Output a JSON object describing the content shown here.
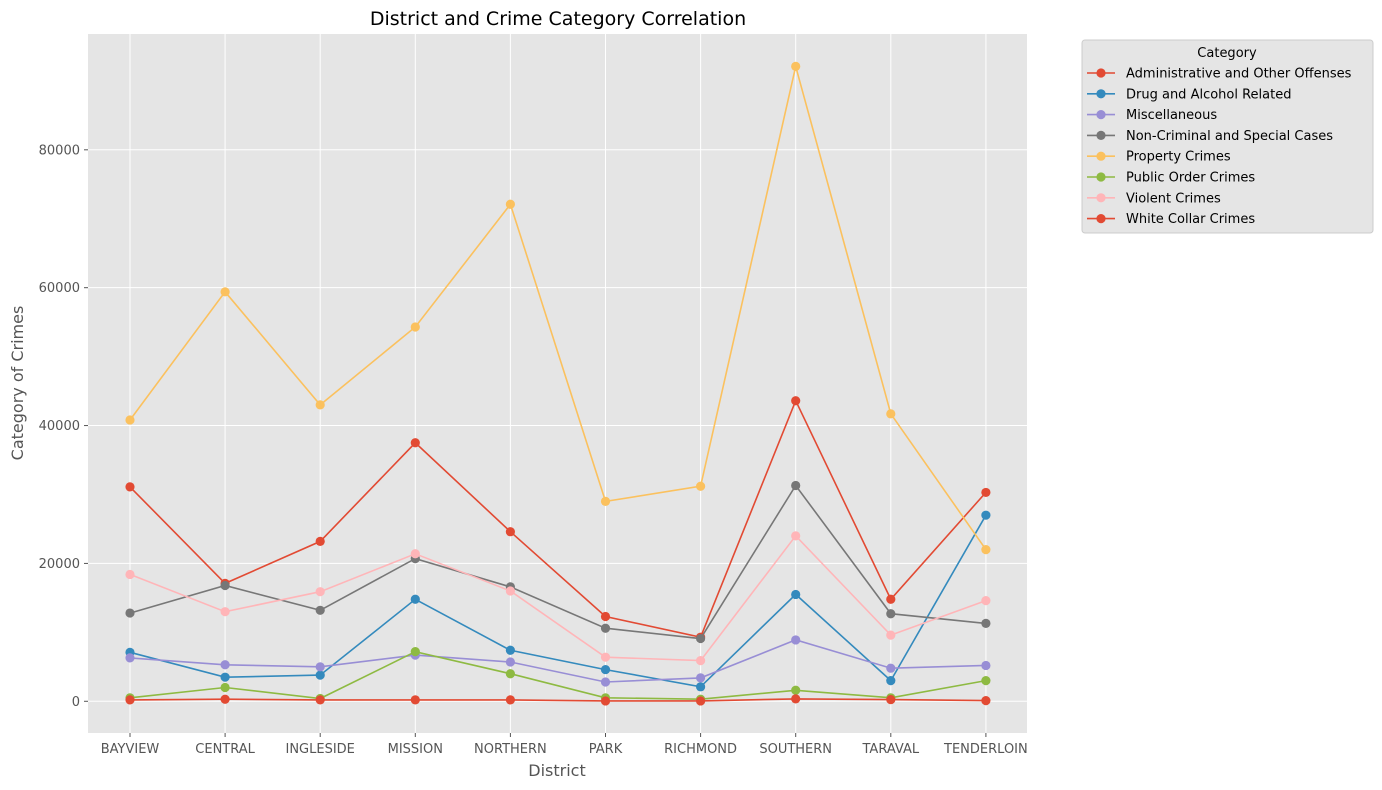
{
  "chart_data": {
    "type": "line",
    "title": "District and Crime Category Correlation",
    "xlabel": "District",
    "ylabel": "Category of Crimes",
    "categories": [
      "BAYVIEW",
      "CENTRAL",
      "INGLESIDE",
      "MISSION",
      "NORTHERN",
      "PARK",
      "RICHMOND",
      "SOUTHERN",
      "TARAVAL",
      "TENDERLOIN"
    ],
    "ylim": [
      -4600,
      96800
    ],
    "yticks": [
      0,
      20000,
      40000,
      60000,
      80000
    ],
    "grid": true,
    "legend": {
      "title": "Category",
      "placement": "outside-top-right"
    },
    "series": [
      {
        "name": "Administrative and Other Offenses",
        "color": "#E24A33",
        "values": [
          31100,
          17100,
          23200,
          37500,
          24600,
          12300,
          9300,
          43600,
          14800,
          30300
        ]
      },
      {
        "name": "Drug and Alcohol Related",
        "color": "#348ABD",
        "values": [
          7100,
          3500,
          3800,
          14800,
          7400,
          4600,
          2100,
          15500,
          3000,
          27000
        ]
      },
      {
        "name": "Miscellaneous",
        "color": "#988ED5",
        "values": [
          6300,
          5300,
          5000,
          6700,
          5700,
          2800,
          3400,
          8900,
          4800,
          5200
        ]
      },
      {
        "name": "Non-Criminal and Special Cases",
        "color": "#777777",
        "values": [
          12800,
          16800,
          13200,
          20700,
          16600,
          10600,
          9100,
          31300,
          12700,
          11300
        ]
      },
      {
        "name": "Property Crimes",
        "color": "#FBC15E",
        "values": [
          40800,
          59400,
          43000,
          54300,
          72100,
          29000,
          31200,
          92100,
          41700,
          22000
        ]
      },
      {
        "name": "Public Order Crimes",
        "color": "#8EBA42",
        "values": [
          500,
          2000,
          400,
          7200,
          4000,
          500,
          300,
          1600,
          500,
          3000
        ]
      },
      {
        "name": "Violent Crimes",
        "color": "#FFB5B8",
        "values": [
          18400,
          13000,
          15900,
          21400,
          16000,
          6400,
          5900,
          24000,
          9600,
          14600
        ]
      },
      {
        "name": "White Collar Crimes",
        "color": "#E24A33",
        "values": [
          200,
          300,
          200,
          200,
          200,
          50,
          50,
          350,
          250,
          100
        ]
      }
    ]
  }
}
